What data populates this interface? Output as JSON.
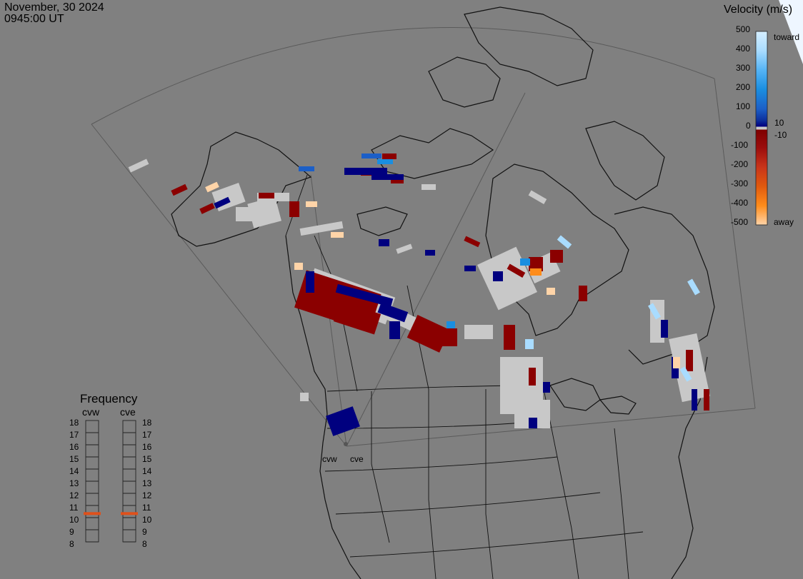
{
  "header": {
    "date": "November, 30 2024",
    "time": "0945:00 UT"
  },
  "velocity_scale": {
    "title": "Velocity (m/s)",
    "ticks": [
      "500",
      "400",
      "300",
      "200",
      "100",
      "0",
      "-100",
      "-200",
      "-300",
      "-400",
      "-500"
    ],
    "toward_label": "toward",
    "away_label": "away",
    "small_pos": "10",
    "small_neg": "-10",
    "colors": {
      "toward_500": "#d6eeff",
      "toward_400": "#a9dcff",
      "toward_300": "#55b4f5",
      "toward_200": "#1a8ee0",
      "toward_100": "#1c5fc7",
      "toward_low": "#0d2f9c",
      "toward_min": "#00007f",
      "ground": "#c8c8c8",
      "away_min": "#7f0000",
      "away_100": "#9b0d0d",
      "away_200": "#c8341a",
      "away_300": "#e0590e",
      "away_400": "#ff8c1a",
      "away_500": "#ffd4a8"
    }
  },
  "frequency_panel": {
    "title": "Frequency",
    "radar_left": "cvw",
    "radar_right": "cve",
    "levels": [
      "18",
      "17",
      "16",
      "15",
      "14",
      "13",
      "12",
      "11",
      "10",
      "9",
      "8"
    ],
    "cvw_mhz": 11,
    "cve_mhz": 11,
    "marker_color": "#e0501a"
  },
  "radar_sites": {
    "west_label": "cvw",
    "east_label": "cve"
  }
}
